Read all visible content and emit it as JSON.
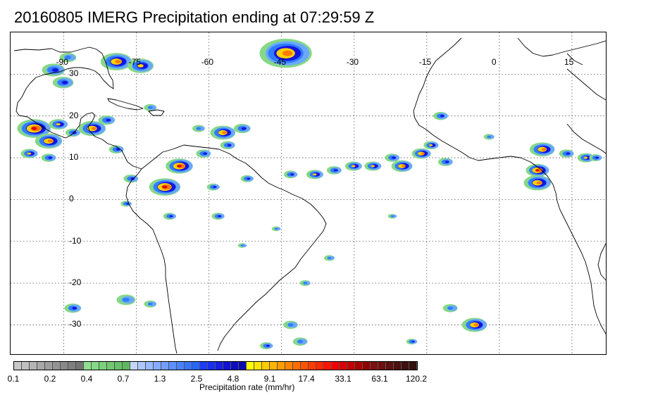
{
  "title": "20160805 IMERG Precipitation ending at 07:29:59 Z",
  "map": {
    "lon_range": [
      -101,
      22
    ],
    "lat_range": [
      -37,
      40
    ],
    "lon_ticks": [
      "-90",
      "-75",
      "-60",
      "-45",
      "-30",
      "-15",
      "0",
      "15"
    ],
    "lat_ticks": [
      "30",
      "20",
      "10",
      "0",
      "-10",
      "-20",
      "-30"
    ],
    "features": [
      "coastlines",
      "dotted graticule"
    ]
  },
  "colorbar": {
    "label": "Precipitation rate (mm/hr)",
    "tick_labels": [
      "0.1",
      "0.2",
      "0.4",
      "0.7",
      "1.3",
      "2.5",
      "4.8",
      "9.1",
      "17.4",
      "33.1",
      "63.1",
      "120.2"
    ],
    "colors": [
      "#c8c8c8",
      "#bfbfbf",
      "#b4b4b4",
      "#a9a9a9",
      "#9e9e9e",
      "#939393",
      "#888888",
      "#7f7f7f",
      "#747474",
      "#8ee08e",
      "#84d884",
      "#7bd07b",
      "#71c871",
      "#68c068",
      "#5fb85f",
      "#c2d6ff",
      "#aec8ff",
      "#9abaff",
      "#86acff",
      "#729eff",
      "#5e90ff",
      "#4a82ff",
      "#3874ff",
      "#2666ff",
      "#1e3cff",
      "#1a2ef0",
      "#1620e0",
      "#1212d0",
      "#0e0ec0",
      "#0a0ab0",
      "#ffff00",
      "#ffe400",
      "#ffcc00",
      "#ffb400",
      "#ff9c00",
      "#ff8400",
      "#ff6c00",
      "#ff5400",
      "#ff3c00",
      "#ff2800",
      "#ff1400",
      "#f00000",
      "#d80000",
      "#c00000",
      "#a80000",
      "#900000",
      "#7c1010",
      "#6c1010",
      "#5c1010",
      "#4c1010",
      "#401010",
      "#341010"
    ]
  },
  "precip_cells": [
    {
      "lon": -79,
      "lat": 33,
      "r": 3.0,
      "i": 5
    },
    {
      "lon": -74,
      "lat": 32,
      "r": 2.5,
      "i": 4
    },
    {
      "lon": -44,
      "lat": 35,
      "r": 5.0,
      "i": 5
    },
    {
      "lon": -89,
      "lat": 34,
      "r": 1.6,
      "i": 2
    },
    {
      "lon": -92,
      "lat": 31,
      "r": 2.2,
      "i": 3
    },
    {
      "lon": -90,
      "lat": 28,
      "r": 2.0,
      "i": 3
    },
    {
      "lon": -96,
      "lat": 17,
      "r": 3.2,
      "i": 6
    },
    {
      "lon": -93,
      "lat": 14,
      "r": 2.6,
      "i": 5
    },
    {
      "lon": -91,
      "lat": 18,
      "r": 1.8,
      "i": 4
    },
    {
      "lon": -97,
      "lat": 11,
      "r": 1.6,
      "i": 4
    },
    {
      "lon": -93,
      "lat": 10,
      "r": 1.4,
      "i": 3
    },
    {
      "lon": -88,
      "lat": 16,
      "r": 1.4,
      "i": 3
    },
    {
      "lon": -84,
      "lat": 17,
      "r": 2.6,
      "i": 5
    },
    {
      "lon": -81,
      "lat": 19,
      "r": 1.6,
      "i": 3
    },
    {
      "lon": -79,
      "lat": 12,
      "r": 1.4,
      "i": 3
    },
    {
      "lon": -72,
      "lat": 22,
      "r": 1.2,
      "i": 2
    },
    {
      "lon": -62,
      "lat": 17,
      "r": 1.2,
      "i": 2
    },
    {
      "lon": -57,
      "lat": 16,
      "r": 2.4,
      "i": 5
    },
    {
      "lon": -53,
      "lat": 17,
      "r": 1.6,
      "i": 3
    },
    {
      "lon": -56,
      "lat": 13,
      "r": 1.4,
      "i": 3
    },
    {
      "lon": -66,
      "lat": 8,
      "r": 2.6,
      "i": 6
    },
    {
      "lon": -69,
      "lat": 3,
      "r": 3.0,
      "i": 6
    },
    {
      "lon": -61,
      "lat": 11,
      "r": 1.4,
      "i": 3
    },
    {
      "lon": -76,
      "lat": 5,
      "r": 1.4,
      "i": 3
    },
    {
      "lon": -59,
      "lat": 3,
      "r": 1.2,
      "i": 3
    },
    {
      "lon": -52,
      "lat": 5,
      "r": 1.2,
      "i": 3
    },
    {
      "lon": -58,
      "lat": -4,
      "r": 1.2,
      "i": 3
    },
    {
      "lon": -77,
      "lat": -1,
      "r": 1.0,
      "i": 3
    },
    {
      "lon": -68,
      "lat": -4,
      "r": 1.2,
      "i": 3
    },
    {
      "lon": -43,
      "lat": 6,
      "r": 1.3,
      "i": 3
    },
    {
      "lon": -38,
      "lat": 6,
      "r": 1.6,
      "i": 4
    },
    {
      "lon": -34,
      "lat": 7,
      "r": 1.4,
      "i": 3
    },
    {
      "lon": -30,
      "lat": 8,
      "r": 1.6,
      "i": 4
    },
    {
      "lon": -26,
      "lat": 8,
      "r": 1.6,
      "i": 4
    },
    {
      "lon": -22,
      "lat": 10,
      "r": 1.4,
      "i": 3
    },
    {
      "lon": -20,
      "lat": 8,
      "r": 2.0,
      "i": 5
    },
    {
      "lon": -16,
      "lat": 11,
      "r": 1.8,
      "i": 5
    },
    {
      "lon": -14,
      "lat": 13,
      "r": 1.4,
      "i": 4
    },
    {
      "lon": -11,
      "lat": 9,
      "r": 1.4,
      "i": 3
    },
    {
      "lon": -12,
      "lat": 20,
      "r": 1.4,
      "i": 3
    },
    {
      "lon": -2,
      "lat": 15,
      "r": 1.0,
      "i": 2
    },
    {
      "lon": 9,
      "lat": 12,
      "r": 2.4,
      "i": 5
    },
    {
      "lon": 8,
      "lat": 7,
      "r": 2.2,
      "i": 6
    },
    {
      "lon": 8,
      "lat": 4,
      "r": 2.6,
      "i": 5
    },
    {
      "lon": 14,
      "lat": 11,
      "r": 1.4,
      "i": 3
    },
    {
      "lon": 18,
      "lat": 10,
      "r": 1.6,
      "i": 4
    },
    {
      "lon": 20,
      "lat": 10,
      "r": 1.2,
      "i": 3
    },
    {
      "lon": -40,
      "lat": -20,
      "r": 1.0,
      "i": 2
    },
    {
      "lon": -35,
      "lat": -14,
      "r": 1.0,
      "i": 2
    },
    {
      "lon": -22,
      "lat": -4,
      "r": 0.8,
      "i": 2
    },
    {
      "lon": -77,
      "lat": -24,
      "r": 1.8,
      "i": 2
    },
    {
      "lon": -88,
      "lat": -26,
      "r": 1.6,
      "i": 3
    },
    {
      "lon": -72,
      "lat": -25,
      "r": 1.2,
      "i": 2
    },
    {
      "lon": -43,
      "lat": -30,
      "r": 1.4,
      "i": 2
    },
    {
      "lon": -41,
      "lat": -34,
      "r": 1.4,
      "i": 2
    },
    {
      "lon": -48,
      "lat": -35,
      "r": 1.2,
      "i": 3
    },
    {
      "lon": -5,
      "lat": -30,
      "r": 2.4,
      "i": 5
    },
    {
      "lon": -10,
      "lat": -26,
      "r": 1.4,
      "i": 2
    },
    {
      "lon": -18,
      "lat": -34,
      "r": 1.0,
      "i": 3
    },
    {
      "lon": -46,
      "lat": -7,
      "r": 0.8,
      "i": 2
    },
    {
      "lon": -53,
      "lat": -11,
      "r": 0.8,
      "i": 2
    }
  ]
}
